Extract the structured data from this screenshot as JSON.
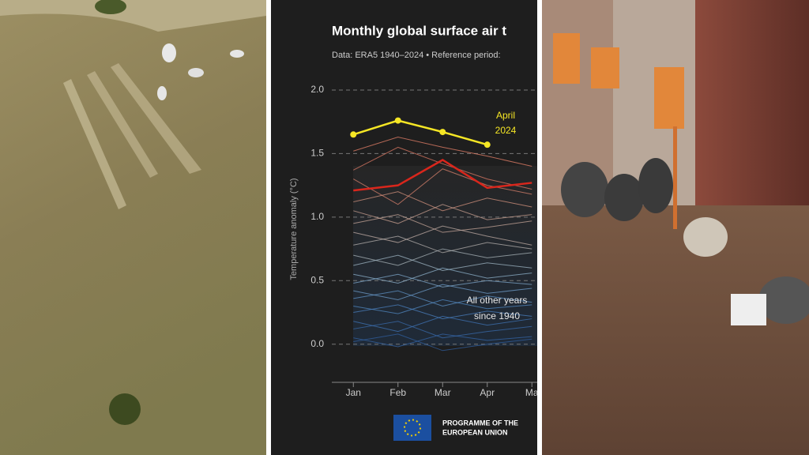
{
  "chart_data": {
    "type": "line",
    "title": "Monthly global surface air t",
    "subtitle": "Data: ERA5 1940–2024 • Reference period:",
    "y_label": "Temperature anomaly (°C)",
    "categories": [
      "Jan",
      "Feb",
      "Mar",
      "Apr",
      "Ma"
    ],
    "ylim": [
      -0.3,
      2.0
    ],
    "yticks": [
      {
        "value": 0,
        "label": "0.0"
      },
      0.5,
      {
        "value": 1,
        "label": "1.0"
      },
      1.5,
      {
        "value": 2,
        "label": "2.0"
      }
    ],
    "grid": true,
    "highlight_label": [
      "April",
      "2024"
    ],
    "other_label": [
      "All other years",
      "since 1940"
    ],
    "footer": [
      "PROGRAMME OF THE",
      "EUROPEAN UNION"
    ],
    "series": [
      {
        "color": "#e8826a",
        "values": [
          1.52,
          1.63,
          1.55,
          1.48,
          1.4
        ]
      },
      {
        "color": "#e07b65",
        "values": [
          1.37,
          1.55,
          1.42,
          1.3,
          1.22
        ]
      },
      {
        "color": "#d9826c",
        "values": [
          1.3,
          1.1,
          1.38,
          1.25,
          1.18
        ]
      },
      {
        "color": "#d6947f",
        "values": [
          1.12,
          1.2,
          1.05,
          1.15,
          1.08
        ]
      },
      {
        "color": "#caa090",
        "values": [
          1.05,
          0.95,
          1.1,
          0.98,
          1.02
        ]
      },
      {
        "color": "#c8a799",
        "values": [
          0.95,
          1.02,
          0.88,
          0.92,
          0.97
        ]
      },
      {
        "color": "#c0aca4",
        "values": [
          0.88,
          0.8,
          0.93,
          0.85,
          0.78
        ]
      },
      {
        "color": "#b5b0ad",
        "values": [
          0.78,
          0.85,
          0.72,
          0.8,
          0.75
        ]
      },
      {
        "color": "#a9b4ba",
        "values": [
          0.7,
          0.62,
          0.75,
          0.68,
          0.72
        ]
      },
      {
        "color": "#9fb5c4",
        "values": [
          0.62,
          0.7,
          0.58,
          0.64,
          0.6
        ]
      },
      {
        "color": "#8fb1cb",
        "values": [
          0.55,
          0.48,
          0.6,
          0.52,
          0.56
        ]
      },
      {
        "color": "#7fa8cc",
        "values": [
          0.48,
          0.55,
          0.45,
          0.5,
          0.47
        ]
      },
      {
        "color": "#6f9ecb",
        "values": [
          0.42,
          0.35,
          0.47,
          0.4,
          0.44
        ]
      },
      {
        "color": "#5f93c7",
        "values": [
          0.36,
          0.42,
          0.3,
          0.38,
          0.33
        ]
      },
      {
        "color": "#5088c2",
        "values": [
          0.3,
          0.24,
          0.35,
          0.28,
          0.31
        ]
      },
      {
        "color": "#4a7fbd",
        "values": [
          0.25,
          0.31,
          0.2,
          0.26,
          0.22
        ]
      },
      {
        "color": "#3f74b5",
        "values": [
          0.18,
          0.1,
          0.22,
          0.15,
          0.2
        ]
      },
      {
        "color": "#3a6cae",
        "values": [
          0.12,
          0.18,
          0.05,
          0.1,
          0.14
        ]
      },
      {
        "color": "#3465a8",
        "values": [
          0.05,
          -0.02,
          0.08,
          0.03,
          0.06
        ]
      },
      {
        "color": "#305f9f",
        "values": [
          0.02,
          0.08,
          -0.05,
          0.0,
          0.04
        ]
      },
      {
        "color": "#d9261c",
        "values": [
          1.21,
          1.25,
          1.45,
          1.23,
          1.27
        ]
      },
      {
        "color": "#f5e625",
        "values": [
          1.65,
          1.76,
          1.67,
          1.57,
          null
        ]
      }
    ]
  }
}
